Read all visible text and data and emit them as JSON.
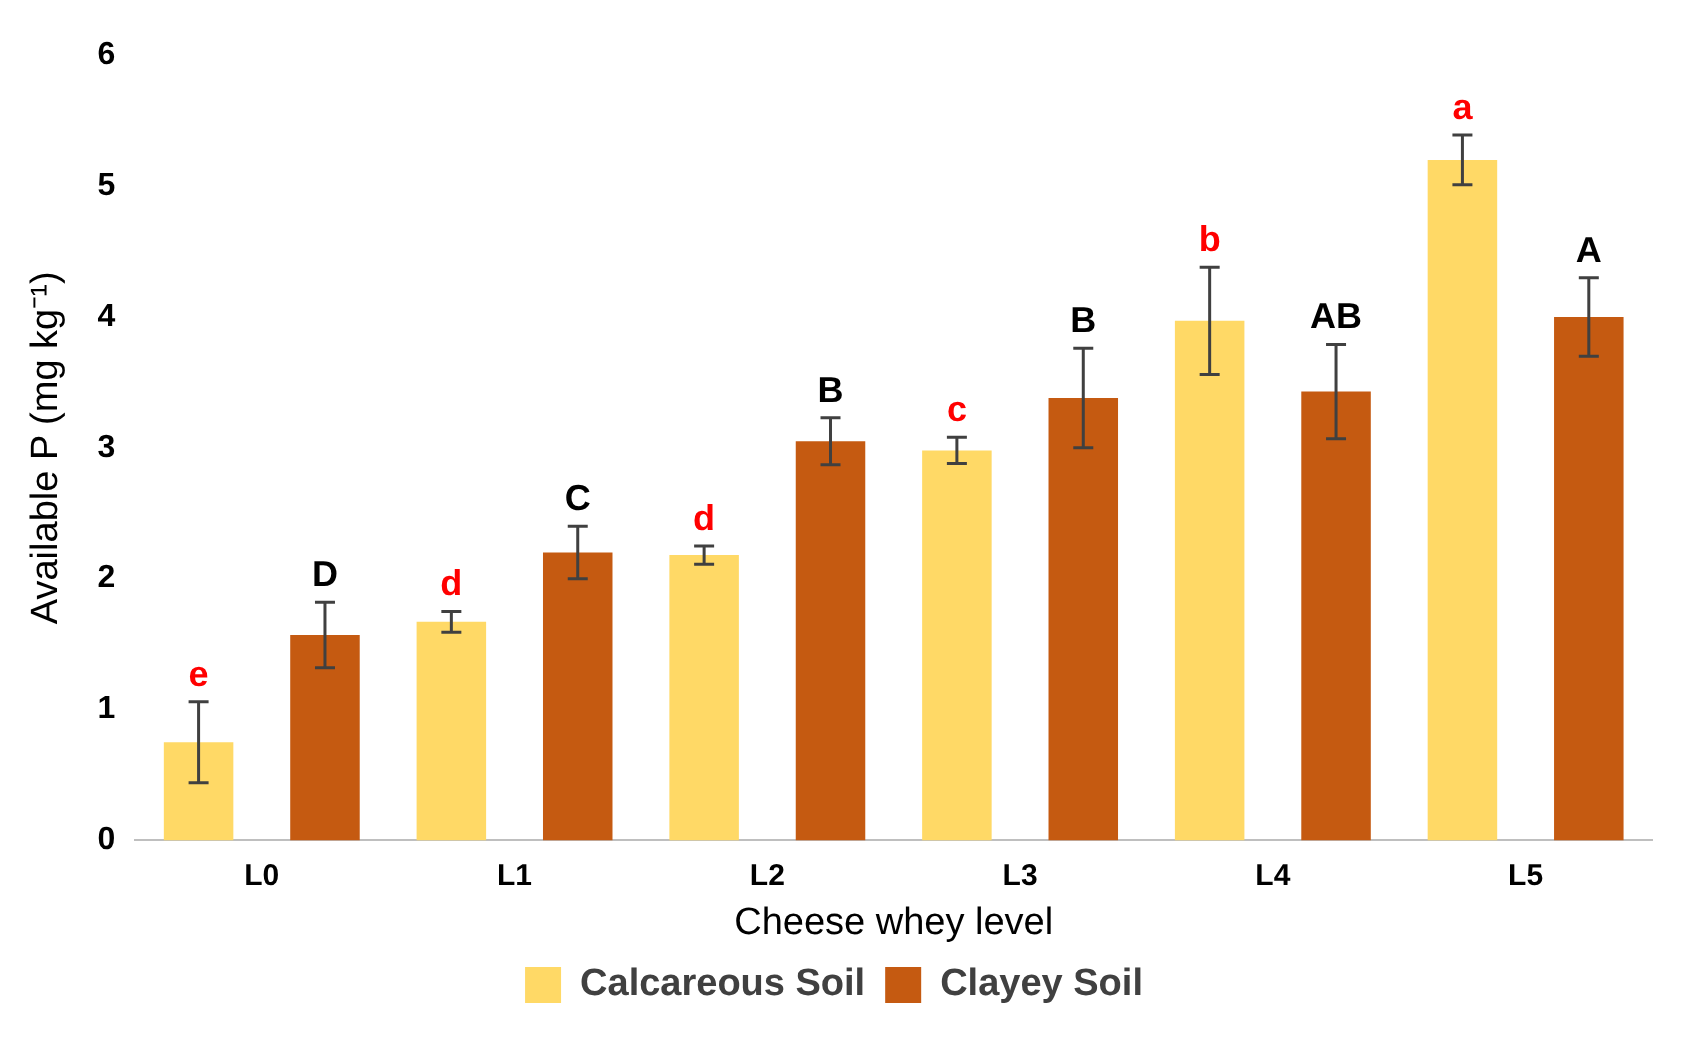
{
  "chart_data": {
    "type": "bar",
    "xlabel": "Cheese whey level",
    "ylabel": "Available P (mg kg⁻¹)",
    "categories": [
      "L0",
      "L1",
      "L2",
      "L3",
      "L4",
      "L5"
    ],
    "series": [
      {
        "name": "Calcareous Soil",
        "color": "#ffd966",
        "values": [
          0.75,
          1.67,
          2.18,
          2.98,
          3.97,
          5.2
        ],
        "errors": [
          0.31,
          0.08,
          0.07,
          0.1,
          0.41,
          0.19
        ],
        "value_labels": [
          "e",
          "d",
          "d",
          "c",
          "b",
          "a"
        ]
      },
      {
        "name": "Clayey Soil",
        "color": "#c55a11",
        "values": [
          1.57,
          2.2,
          3.05,
          3.38,
          3.43,
          4.0
        ],
        "errors": [
          0.25,
          0.2,
          0.18,
          0.38,
          0.36,
          0.3
        ],
        "value_labels": [
          "D",
          "C",
          "B",
          "B",
          "AB",
          "A"
        ]
      }
    ],
    "ylim": [
      0,
      6
    ],
    "yticks": [
      0,
      1,
      2,
      3,
      4,
      5,
      6
    ],
    "grid": false,
    "legend": "bottom"
  }
}
